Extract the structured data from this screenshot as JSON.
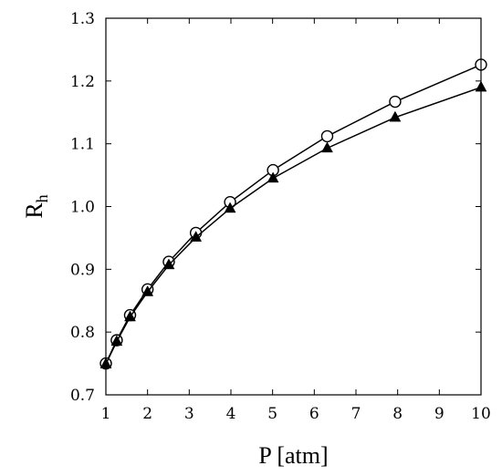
{
  "chart_data": {
    "type": "line",
    "xlabel": "P [atm]",
    "ylabel": {
      "main": "R",
      "sub": "h"
    },
    "xlim": [
      1,
      10
    ],
    "ylim": [
      0.7,
      1.3
    ],
    "xticks": [
      1,
      2,
      3,
      4,
      5,
      6,
      7,
      8,
      9,
      10
    ],
    "yticks": [
      0.7,
      0.8,
      0.9,
      1.0,
      1.1,
      1.2,
      1.3
    ],
    "ytick_labels": [
      "0.7",
      "0.8",
      "0.9",
      "1.0",
      "1.1",
      "1.2",
      "1.3"
    ],
    "grid": false,
    "series": [
      {
        "marker": "open-circle",
        "color": "#000000",
        "x": [
          1.0,
          1.26,
          1.58,
          2.0,
          2.51,
          3.16,
          3.98,
          5.01,
          6.31,
          7.94,
          10.0
        ],
        "y": [
          0.75,
          0.787,
          0.827,
          0.868,
          0.912,
          0.958,
          1.007,
          1.058,
          1.112,
          1.167,
          1.226
        ]
      },
      {
        "marker": "filled-triangle",
        "color": "#000000",
        "x": [
          1.0,
          1.26,
          1.58,
          2.0,
          2.51,
          3.16,
          3.98,
          5.01,
          6.31,
          7.94,
          10.0
        ],
        "y": [
          0.749,
          0.785,
          0.824,
          0.864,
          0.907,
          0.951,
          0.997,
          1.045,
          1.093,
          1.142,
          1.19
        ]
      }
    ]
  }
}
